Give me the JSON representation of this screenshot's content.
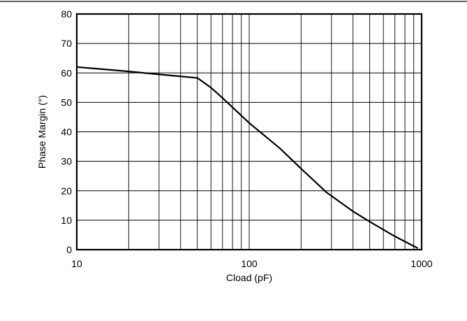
{
  "chart_data": {
    "type": "line",
    "title": "",
    "xlabel": "Cload (pF)",
    "ylabel": "Phase Margin (°)",
    "xscale": "log",
    "xlim": [
      10,
      1000
    ],
    "ylim": [
      0,
      80
    ],
    "xticks": [
      10,
      100,
      1000
    ],
    "xtick_labels": [
      "10",
      "100",
      "1000"
    ],
    "yticks": [
      0,
      10,
      20,
      30,
      40,
      50,
      60,
      70,
      80
    ],
    "ytick_labels": [
      "0",
      "10",
      "20",
      "30",
      "40",
      "50",
      "60",
      "70",
      "80"
    ],
    "grid": true,
    "legend": "none",
    "colors": {
      "line": "#000000",
      "grid": "#000000",
      "frame": "#000000"
    },
    "series": [
      {
        "x": [
          10,
          20,
          30,
          50,
          60,
          70,
          100,
          150,
          200,
          280,
          400,
          500,
          700,
          950
        ],
        "y": [
          62,
          60.5,
          59.5,
          58.3,
          55,
          51.5,
          43,
          34.5,
          27.5,
          19.5,
          13,
          9.5,
          4.5,
          0.5
        ]
      }
    ]
  }
}
